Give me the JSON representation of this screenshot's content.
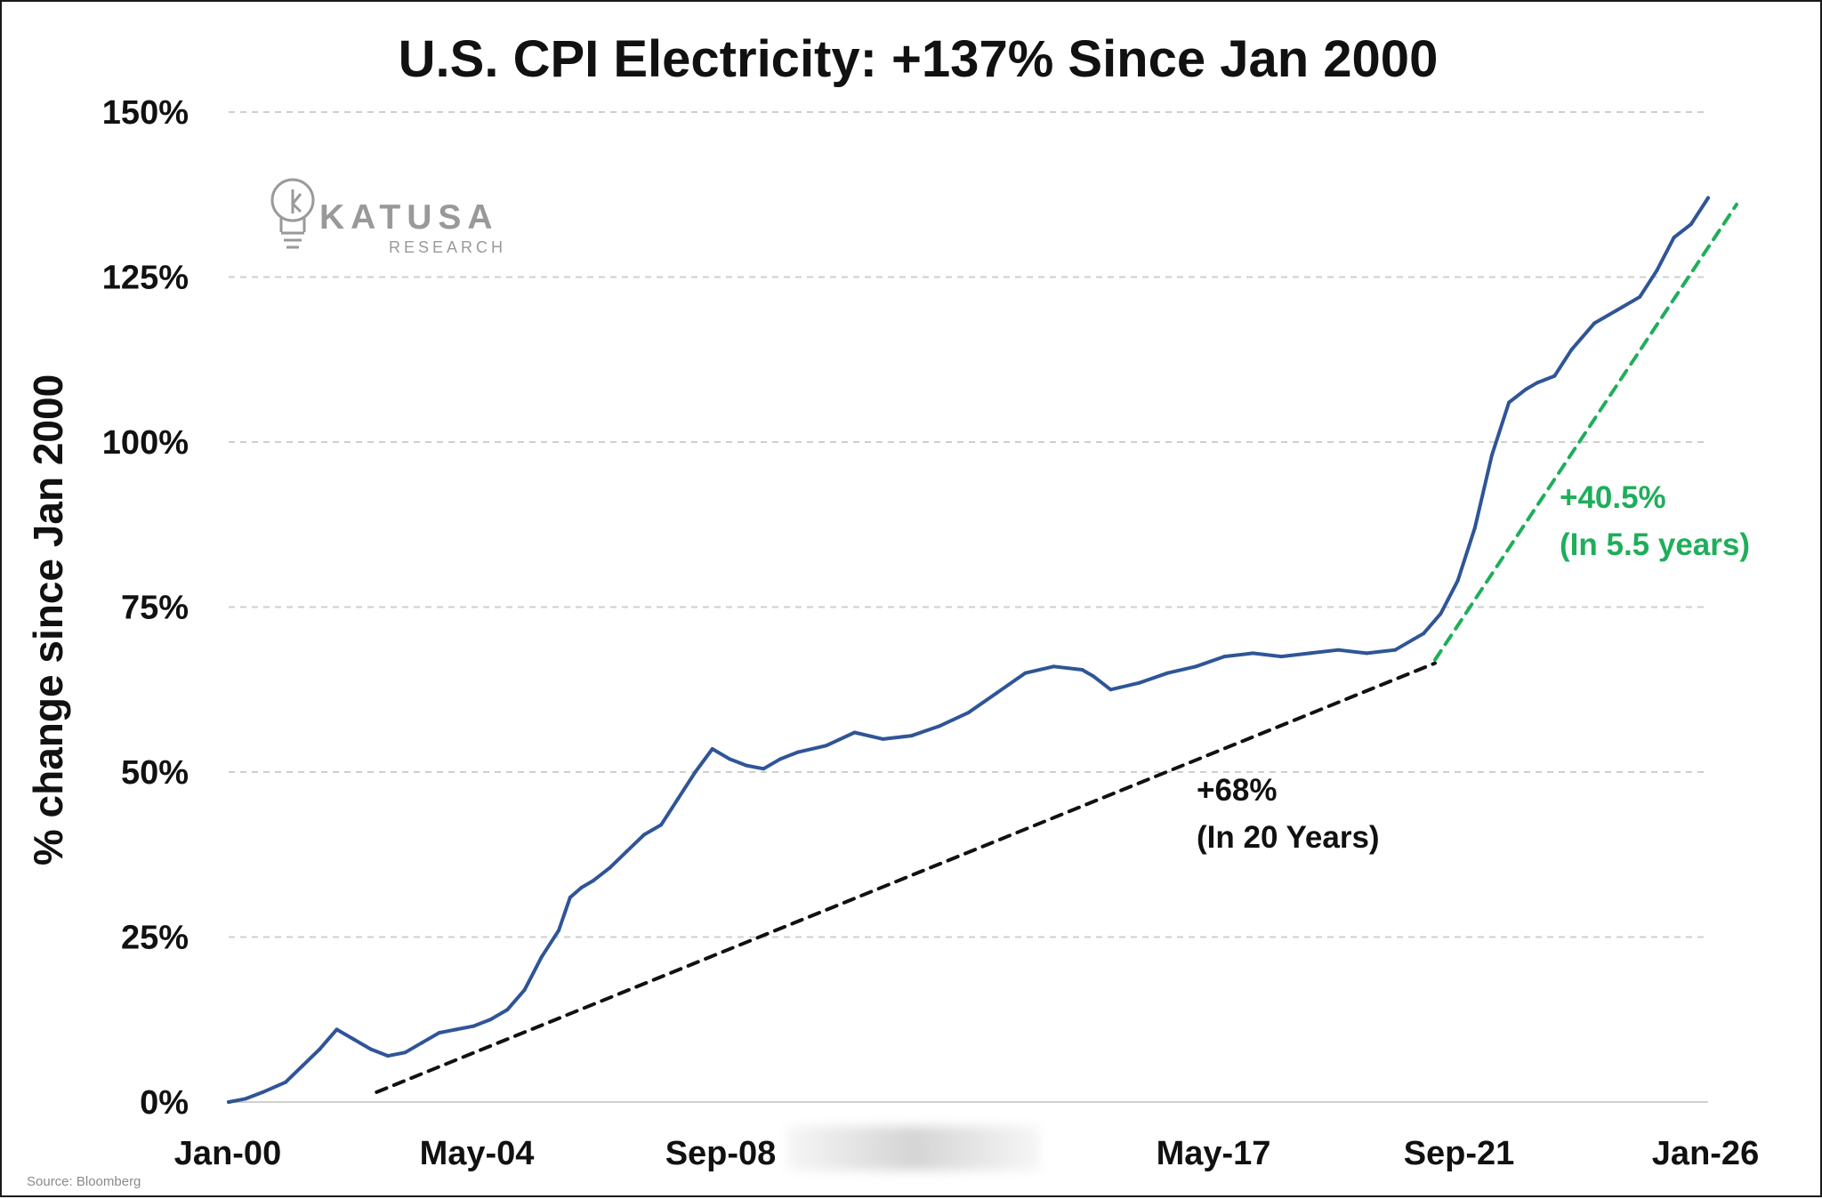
{
  "chart_data": {
    "type": "line",
    "title": "U.S. CPI Electricity: +137% Since Jan 2000",
    "ylabel": "% change since Jan 2000",
    "xlabel": "",
    "x_ticks": [
      "Jan-00",
      "May-04",
      "Sep-08",
      "May-17",
      "Sep-21",
      "Jan-26"
    ],
    "y_ticks": [
      "0%",
      "25%",
      "50%",
      "75%",
      "100%",
      "125%",
      "150%"
    ],
    "ylim": [
      0,
      150
    ],
    "xlim": [
      2000,
      2026
    ],
    "grid": true,
    "series": [
      {
        "color": "#2f5597",
        "x": [
          2000.0,
          2000.3,
          2000.6,
          2001.0,
          2001.3,
          2001.6,
          2001.9,
          2002.2,
          2002.5,
          2002.8,
          2003.1,
          2003.4,
          2003.7,
          2004.0,
          2004.3,
          2004.6,
          2004.9,
          2005.2,
          2005.5,
          2005.8,
          2006.0,
          2006.2,
          2006.4,
          2006.7,
          2007.0,
          2007.3,
          2007.6,
          2007.9,
          2008.2,
          2008.5,
          2008.8,
          2009.1,
          2009.4,
          2009.7,
          2010.0,
          2010.5,
          2011.0,
          2011.5,
          2012.0,
          2012.5,
          2013.0,
          2013.5,
          2014.0,
          2014.5,
          2015.0,
          2015.2,
          2015.5,
          2016.0,
          2016.5,
          2017.0,
          2017.5,
          2018.0,
          2018.5,
          2019.0,
          2019.5,
          2020.0,
          2020.5,
          2021.0,
          2021.3,
          2021.6,
          2021.9,
          2022.2,
          2022.5,
          2022.8,
          2023.0,
          2023.3,
          2023.6,
          2024.0,
          2024.4,
          2024.8,
          2025.1,
          2025.4,
          2025.7,
          2026.0
        ],
        "values": [
          0,
          0.5,
          1.5,
          3,
          5.5,
          8,
          11,
          9.5,
          8,
          7,
          7.5,
          9,
          10.5,
          11,
          11.5,
          12.5,
          14,
          17,
          22,
          26,
          31,
          32.5,
          33.5,
          35.5,
          38,
          40.5,
          42,
          46,
          50,
          53.5,
          52,
          51,
          50.5,
          52,
          53,
          54,
          56,
          55,
          55.5,
          57,
          59,
          62,
          65,
          66,
          65.5,
          64.5,
          62.5,
          63.5,
          65,
          66,
          67.5,
          68,
          67.5,
          68,
          68.5,
          68,
          68.5,
          71,
          74,
          79,
          87,
          98,
          106,
          108,
          109,
          110,
          114,
          118,
          120,
          122,
          126,
          131,
          133,
          137
        ]
      }
    ],
    "annotations": [
      {
        "label_1": "+68%",
        "label_2": "(In 20 Years)",
        "color": "#111111",
        "trend_x": [
          2002.6,
          2021.2
        ],
        "trend_y": [
          1.5,
          66.5
        ]
      },
      {
        "label_1": "+40.5%",
        "label_2": "(In 5.5 years)",
        "color": "#1fae5b",
        "trend_x": [
          2021.2,
          2026.5
        ],
        "trend_y": [
          67,
          136
        ]
      }
    ]
  },
  "logo": {
    "main": "KATUSA",
    "sub": "RESEARCH"
  },
  "source": "Source: Bloomberg"
}
